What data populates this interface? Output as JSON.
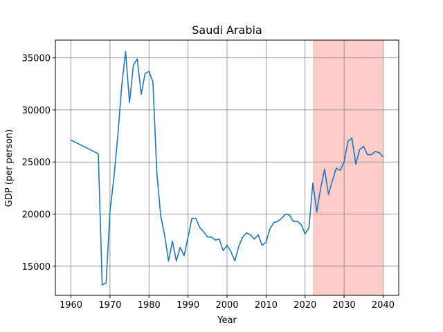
{
  "chart_data": {
    "type": "line",
    "title": "Saudi Arabia",
    "xlabel": "Year",
    "ylabel": "GDP (per person)",
    "xlim": [
      1956.0,
      2044.0
    ],
    "ylim": [
      12200,
      36700
    ],
    "xticks": [
      1960,
      1970,
      1980,
      1990,
      2000,
      2010,
      2020,
      2030,
      2040
    ],
    "xtick_labels": [
      "1960",
      "1970",
      "1980",
      "1990",
      "2000",
      "2010",
      "2020",
      "2030",
      "2040"
    ],
    "yticks": [
      15000,
      20000,
      25000,
      30000,
      35000
    ],
    "ytick_labels": [
      "15000",
      "20000",
      "25000",
      "30000",
      "35000"
    ],
    "grid": true,
    "highlight_span": {
      "x_start": 2022,
      "x_end": 2040,
      "color": "#ffcccc"
    },
    "series": [
      {
        "color": "#1f77b4",
        "x": [
          1960,
          1967,
          1968,
          1969,
          1970,
          1971,
          1972,
          1973,
          1974,
          1975,
          1976,
          1977,
          1978,
          1979,
          1980,
          1981,
          1982,
          1983,
          1984,
          1985,
          1986,
          1987,
          1988,
          1989,
          1990,
          1991,
          1992,
          1993,
          1994,
          1995,
          1996,
          1997,
          1998,
          1999,
          2000,
          2001,
          2002,
          2003,
          2004,
          2005,
          2006,
          2007,
          2008,
          2009,
          2010,
          2011,
          2012,
          2013,
          2014,
          2015,
          2016,
          2017,
          2018,
          2019,
          2020,
          2021,
          2022,
          2023,
          2024,
          2025,
          2026,
          2027,
          2028,
          2029,
          2030,
          2031,
          2032,
          2033,
          2034,
          2035,
          2036,
          2037,
          2038,
          2039,
          2040
        ],
        "y": [
          27100,
          25800,
          13200,
          13400,
          20300,
          23500,
          27500,
          32300,
          35600,
          30700,
          34300,
          34900,
          31500,
          33500,
          33700,
          32700,
          24000,
          19800,
          18000,
          15500,
          17400,
          15500,
          16800,
          16000,
          17800,
          19600,
          19600,
          18700,
          18300,
          17800,
          17800,
          17500,
          17600,
          16500,
          17000,
          16400,
          15500,
          16900,
          17800,
          18200,
          18000,
          17600,
          18000,
          17000,
          17300,
          18600,
          19200,
          19300,
          19600,
          20000,
          19900,
          19300,
          19300,
          19000,
          18100,
          18700,
          23000,
          20200,
          22500,
          24300,
          21900,
          23200,
          24400,
          24200,
          25000,
          27000,
          27300,
          24800,
          26200,
          26500,
          25700,
          25700,
          26000,
          25900,
          25500
        ]
      }
    ]
  }
}
